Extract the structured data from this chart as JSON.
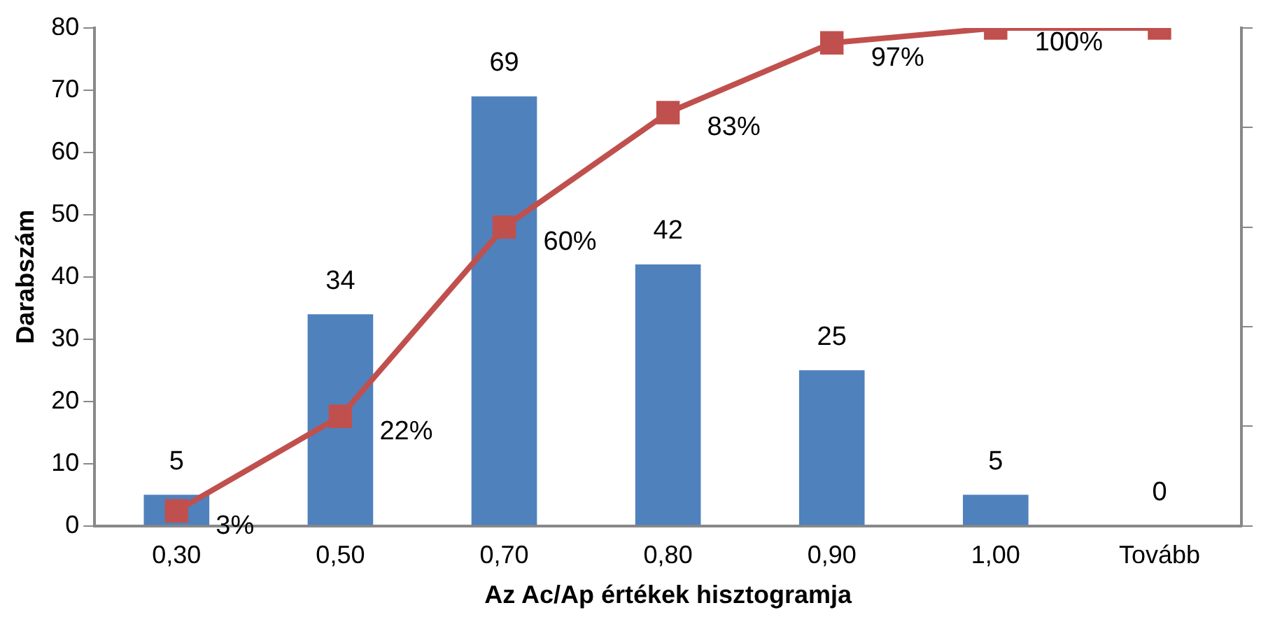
{
  "chart_data": {
    "type": "bar",
    "xlabel": "Az Ac/Ap értékek hisztogramja",
    "ylabel": "Darabszám",
    "categories": [
      "0,30",
      "0,50",
      "0,70",
      "0,80",
      "0,90",
      "1,00",
      "Tovább"
    ],
    "series": [
      {
        "color": "#4f81bd",
        "values": [
          5,
          34,
          69,
          42,
          25,
          5,
          0
        ],
        "data_labels": true
      },
      {
        "type": "line",
        "axis": "y2",
        "color": "#c0504d",
        "marker": "square",
        "values": [
          3,
          22,
          60,
          83,
          97,
          100,
          100
        ],
        "value_labels": [
          "3%",
          "22%",
          "60%",
          "83%",
          "97%",
          "100%",
          null
        ]
      }
    ],
    "ylim": [
      0,
      80
    ],
    "yticks": [
      0,
      10,
      20,
      30,
      40,
      50,
      60,
      70,
      80
    ],
    "y2lim": [
      0,
      100
    ],
    "y2ticks": [
      {
        "value": 0,
        "label": null
      },
      {
        "value": 20,
        "label": null
      },
      {
        "value": 40,
        "label": null
      },
      {
        "value": 60,
        "label": null
      },
      {
        "value": 80,
        "label": null
      },
      {
        "value": 100,
        "label": null
      }
    ],
    "grid": false,
    "legend": false
  }
}
